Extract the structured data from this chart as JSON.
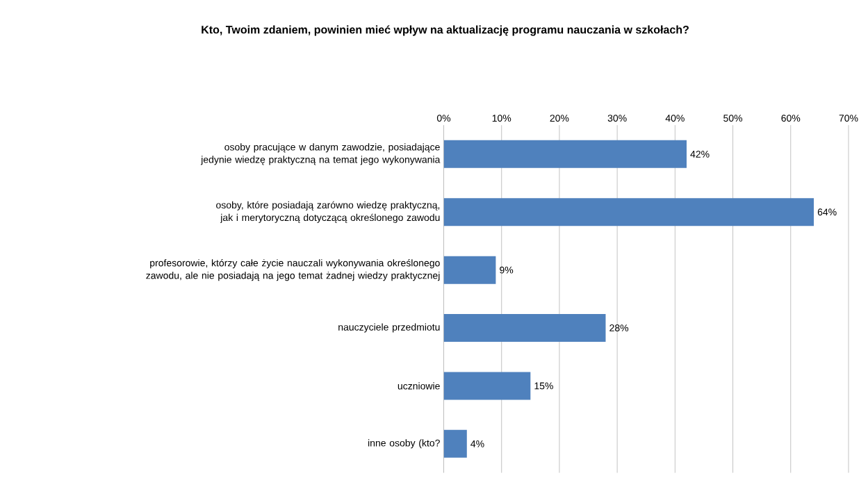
{
  "chart_data": {
    "type": "bar",
    "orientation": "horizontal",
    "title": "Kto, Twoim zdaniem, powinien mieć wpływ na aktualizację programu nauczania w szkołach?",
    "categories": [
      "osoby pracujące w danym zawodzie, posiadające jedynie wiedzę praktyczną na temat jego wykonywania",
      "osoby, które posiadają zarówno wiedzę praktyczną, jak i merytoryczną dotyczącą określonego zawodu",
      "profesorowie, którzy całe życie nauczali wykonywania określonego zawodu, ale nie posiadają na jego temat żadnej wiedzy praktycznej",
      "nauczyciele przedmiotu",
      "uczniowie",
      "inne osoby (kto?"
    ],
    "values": [
      42,
      64,
      9,
      28,
      15,
      4
    ],
    "value_labels": [
      "42%",
      "64%",
      "9%",
      "28%",
      "15%",
      "4%"
    ],
    "color": "#4f81bd",
    "xlim": [
      0,
      70
    ],
    "xticks": [
      {
        "value": 0,
        "label": "0%"
      },
      {
        "value": 10,
        "label": "10%"
      },
      {
        "value": 20,
        "label": "20%"
      },
      {
        "value": 30,
        "label": "30%"
      },
      {
        "value": 40,
        "label": "40%"
      },
      {
        "value": 50,
        "label": "50%"
      },
      {
        "value": 60,
        "label": "60%"
      },
      {
        "value": 70,
        "label": "70%"
      }
    ],
    "grid": "x"
  }
}
